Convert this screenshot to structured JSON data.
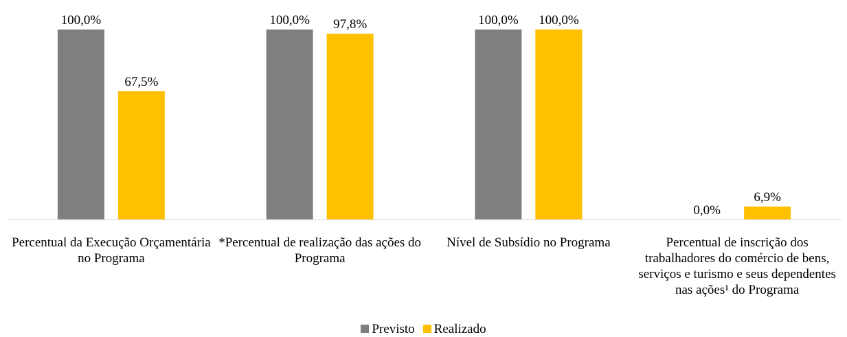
{
  "chart_data": {
    "type": "bar",
    "categories": [
      "Percentual da Execução Orçamentária no Programa",
      "*Percentual de realização das ações do Programa",
      "Nível de Subsídio no Programa",
      "Percentual de inscrição dos trabalhadores do comércio de bens, serviços e turismo e seus dependentes nas ações¹ do Programa"
    ],
    "series": [
      {
        "name": "Previsto",
        "color": "#7f7f7f",
        "values": [
          100,
          100,
          100,
          0
        ],
        "value_labels": [
          "100,0%",
          "100,0%",
          "100,0%",
          "0,0%"
        ]
      },
      {
        "name": "Realizado",
        "color": "#ffc000",
        "values": [
          67.5,
          97.8,
          100,
          6.9
        ],
        "value_labels": [
          "67,5%",
          "97,8%",
          "100,0%",
          "6,9%"
        ]
      }
    ]
  }
}
